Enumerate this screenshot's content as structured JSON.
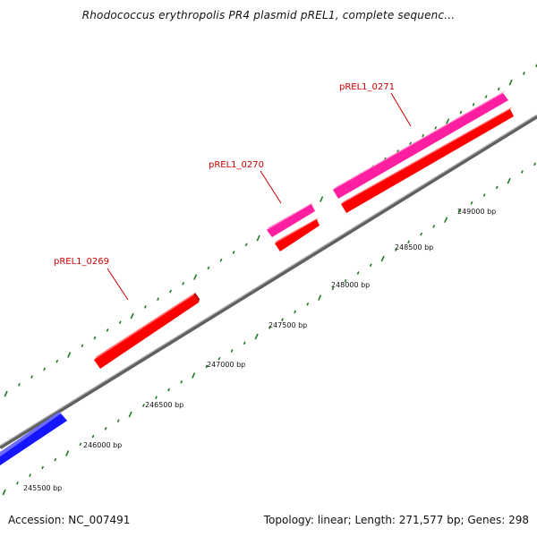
{
  "title": "Rhodococcus erythropolis PR4 plasmid pREL1, complete sequenc...",
  "accession": "Accession: NC_007491",
  "summary": "Topology: linear; Length: 271,577 bp; Genes: 298",
  "colors": {
    "backbone": "#808080",
    "tick": "#1e7a1e",
    "gene_label": "#cc0000",
    "forward_red": "#ff0000",
    "reverse_red": "#ff0000",
    "pink": "#ff1fa0",
    "blue": "#1515ff"
  },
  "genes": [
    {
      "id": "pREL1_0269",
      "label": "pREL1_0269",
      "strand": "forward",
      "color": "red"
    },
    {
      "id": "pREL1_0270",
      "label": "pREL1_0270",
      "strand": "both",
      "color": "pink+red"
    },
    {
      "id": "pREL1_0271",
      "label": "pREL1_0271",
      "strand": "both",
      "color": "pink+red"
    },
    {
      "id": "unlabeled",
      "label": "",
      "strand": "reverse",
      "color": "blue"
    }
  ],
  "bp_ticks": [
    "245500 bp",
    "246000 bp",
    "246500 bp",
    "247000 bp",
    "247500 bp",
    "248000 bp",
    "248500 bp",
    "249000 bp"
  ]
}
